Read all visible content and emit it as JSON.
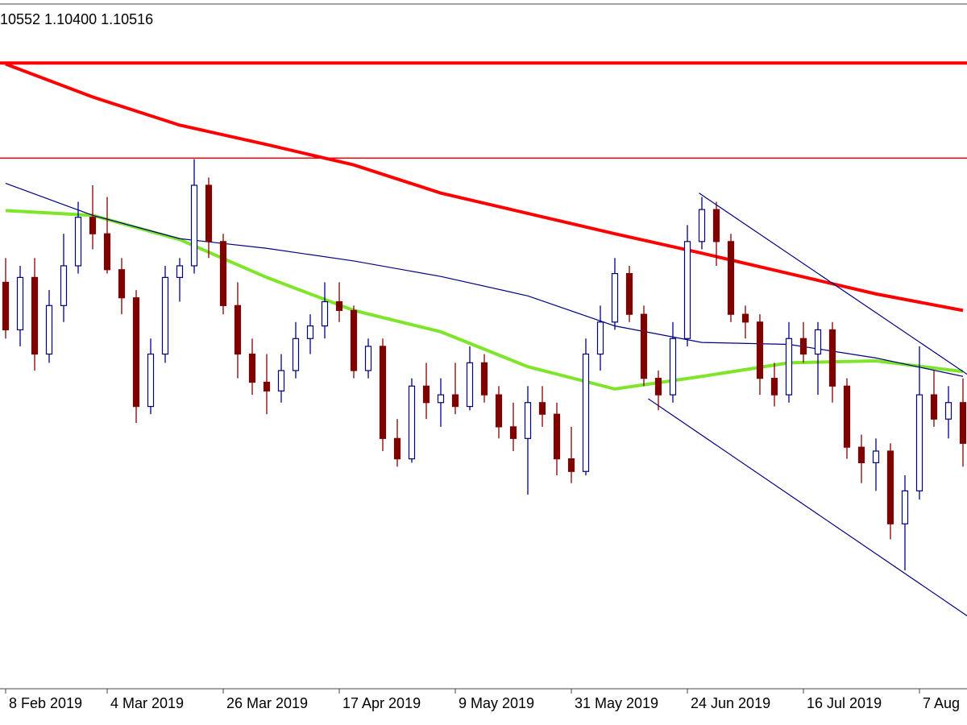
{
  "chart_data": {
    "type": "candlestick",
    "info": "10552 1.10400 1.10516",
    "categories": [
      "8 Feb 2019",
      null,
      null,
      null,
      null,
      null,
      null,
      "4 Mar 2019",
      null,
      null,
      null,
      null,
      null,
      null,
      null,
      "26 Mar 2019",
      null,
      null,
      null,
      null,
      null,
      null,
      null,
      "17 Apr 2019",
      null,
      null,
      null,
      null,
      null,
      null,
      null,
      "9 May 2019",
      null,
      null,
      null,
      null,
      null,
      null,
      null,
      "31 May 2019",
      null,
      null,
      null,
      null,
      null,
      null,
      null,
      "24 Jun 2019",
      null,
      null,
      null,
      null,
      null,
      null,
      null,
      "16 Jul 2019",
      null,
      null,
      null,
      null,
      null,
      null,
      null,
      "7 Aug",
      null,
      null,
      null
    ],
    "open": [
      1.1319,
      1.127,
      1.1324,
      1.1245,
      1.1295,
      1.1336,
      1.1386,
      1.1369,
      1.1332,
      1.1303,
      1.1191,
      1.1245,
      1.1324,
      1.1336,
      1.1419,
      1.1361,
      1.1295,
      1.1245,
      1.1216,
      1.1207,
      1.1228,
      1.1261,
      1.1274,
      1.1299,
      1.129,
      1.1228,
      1.1253,
      1.1158,
      1.1137,
      1.1212,
      1.1195,
      1.1203,
      1.1191,
      1.1236,
      1.1203,
      1.117,
      1.1158,
      1.1195,
      1.1183,
      1.1137,
      1.1124,
      1.1245,
      1.1278,
      1.1328,
      1.1286,
      1.122,
      1.1203,
      1.1261,
      1.1361,
      1.1394,
      1.1361,
      1.1286,
      1.1278,
      1.122,
      1.1203,
      1.1261,
      1.1245,
      1.127,
      1.1212,
      1.1149,
      1.1133,
      1.1145,
      1.107,
      1.1104,
      1.1203,
      1.1178,
      1.1195
    ],
    "high": [
      1.1344,
      1.1336,
      1.1344,
      1.1311,
      1.1369,
      1.1402,
      1.1419,
      1.1407,
      1.1344,
      1.1311,
      1.1261,
      1.1336,
      1.1344,
      1.1446,
      1.1427,
      1.1369,
      1.1319,
      1.1261,
      1.1245,
      1.1245,
      1.1278,
      1.1286,
      1.1319,
      1.1319,
      1.1295,
      1.1261,
      1.1261,
      1.1178,
      1.122,
      1.1236,
      1.122,
      1.1236,
      1.1253,
      1.1245,
      1.1212,
      1.1195,
      1.1212,
      1.1212,
      1.1195,
      1.117,
      1.1261,
      1.1295,
      1.1344,
      1.1336,
      1.1295,
      1.1228,
      1.1278,
      1.1378,
      1.1407,
      1.1402,
      1.1369,
      1.1295,
      1.1286,
      1.1236,
      1.1278,
      1.1278,
      1.1278,
      1.1278,
      1.122,
      1.1162,
      1.1158,
      1.1153,
      1.112,
      1.1253,
      1.1228,
      1.1212,
      1.122
    ],
    "low": [
      1.1261,
      1.1253,
      1.1228,
      1.1236,
      1.1278,
      1.1328,
      1.1353,
      1.1328,
      1.1286,
      1.1174,
      1.1183,
      1.1236,
      1.1299,
      1.1328,
      1.1344,
      1.1286,
      1.122,
      1.1203,
      1.1183,
      1.1195,
      1.122,
      1.1245,
      1.1261,
      1.1278,
      1.122,
      1.122,
      1.1145,
      1.1129,
      1.1133,
      1.1178,
      1.117,
      1.1183,
      1.1187,
      1.1195,
      1.1158,
      1.1145,
      1.11,
      1.117,
      1.112,
      1.1112,
      1.112,
      1.1228,
      1.127,
      1.1278,
      1.1212,
      1.1187,
      1.1195,
      1.1253,
      1.1353,
      1.1336,
      1.1278,
      1.1261,
      1.1203,
      1.1191,
      1.1195,
      1.1236,
      1.1203,
      1.1195,
      1.1137,
      1.1112,
      1.1104,
      1.1054,
      1.1022,
      1.1095,
      1.117,
      1.1158,
      1.1129
    ],
    "close": [
      1.127,
      1.1324,
      1.1245,
      1.1295,
      1.1336,
      1.1386,
      1.1369,
      1.1332,
      1.1303,
      1.1191,
      1.1245,
      1.1324,
      1.1336,
      1.1419,
      1.1361,
      1.1295,
      1.1245,
      1.1216,
      1.1207,
      1.1228,
      1.1261,
      1.1274,
      1.1299,
      1.129,
      1.1228,
      1.1253,
      1.1158,
      1.1137,
      1.1212,
      1.1195,
      1.1203,
      1.1191,
      1.1236,
      1.1203,
      1.117,
      1.1158,
      1.1195,
      1.1183,
      1.1137,
      1.1124,
      1.1245,
      1.1278,
      1.1328,
      1.1286,
      1.122,
      1.1203,
      1.1261,
      1.1361,
      1.1394,
      1.1361,
      1.1286,
      1.1278,
      1.122,
      1.1203,
      1.1261,
      1.1245,
      1.127,
      1.1212,
      1.1149,
      1.1133,
      1.1145,
      1.107,
      1.1104,
      1.1203,
      1.1178,
      1.1195,
      1.1153
    ],
    "up_color": "#000080",
    "down_color": "#800000",
    "ylim": [
      1.09,
      1.161
    ],
    "lines": [
      {
        "color": "#ff0000",
        "width": 4,
        "x": [
          0,
          6,
          12,
          18,
          24,
          30,
          36,
          42,
          48,
          54,
          60,
          66
        ],
        "values": [
          1.1544,
          1.151,
          1.1481,
          1.1461,
          1.144,
          1.1411,
          1.139,
          1.1369,
          1.1349,
          1.1328,
          1.1307,
          1.129
        ]
      },
      {
        "color": "#7fe52a",
        "width": 4,
        "x": [
          0,
          6,
          12,
          18,
          24,
          30,
          36,
          42,
          48,
          54,
          60,
          66
        ],
        "values": [
          1.1393,
          1.1388,
          1.1363,
          1.1324,
          1.129,
          1.1268,
          1.1232,
          1.1209,
          1.1222,
          1.1236,
          1.1238,
          1.1227
        ]
      },
      {
        "color": "#000080",
        "width": 1.2,
        "x": [
          0,
          6,
          12,
          18,
          24,
          30,
          36,
          42,
          48,
          54,
          60,
          66
        ],
        "values": [
          1.1421,
          1.1388,
          1.1364,
          1.1354,
          1.1341,
          1.1325,
          1.1305,
          1.1274,
          1.1257,
          1.1255,
          1.1241,
          1.1222
        ]
      }
    ],
    "levels": [
      {
        "value": 1.1545,
        "color": "#ff0000",
        "width": 4
      },
      {
        "value": 1.1447,
        "color": "#ff0000",
        "width": 1.5
      }
    ],
    "trendlines": [
      {
        "color": "#000080",
        "x": [
          47.8,
          66.3
        ],
        "values": [
          1.1411,
          1.1224
        ]
      },
      {
        "color": "#000080",
        "x": [
          44.3,
          66.3
        ],
        "values": [
          1.1199,
          1.0975
        ]
      }
    ]
  }
}
